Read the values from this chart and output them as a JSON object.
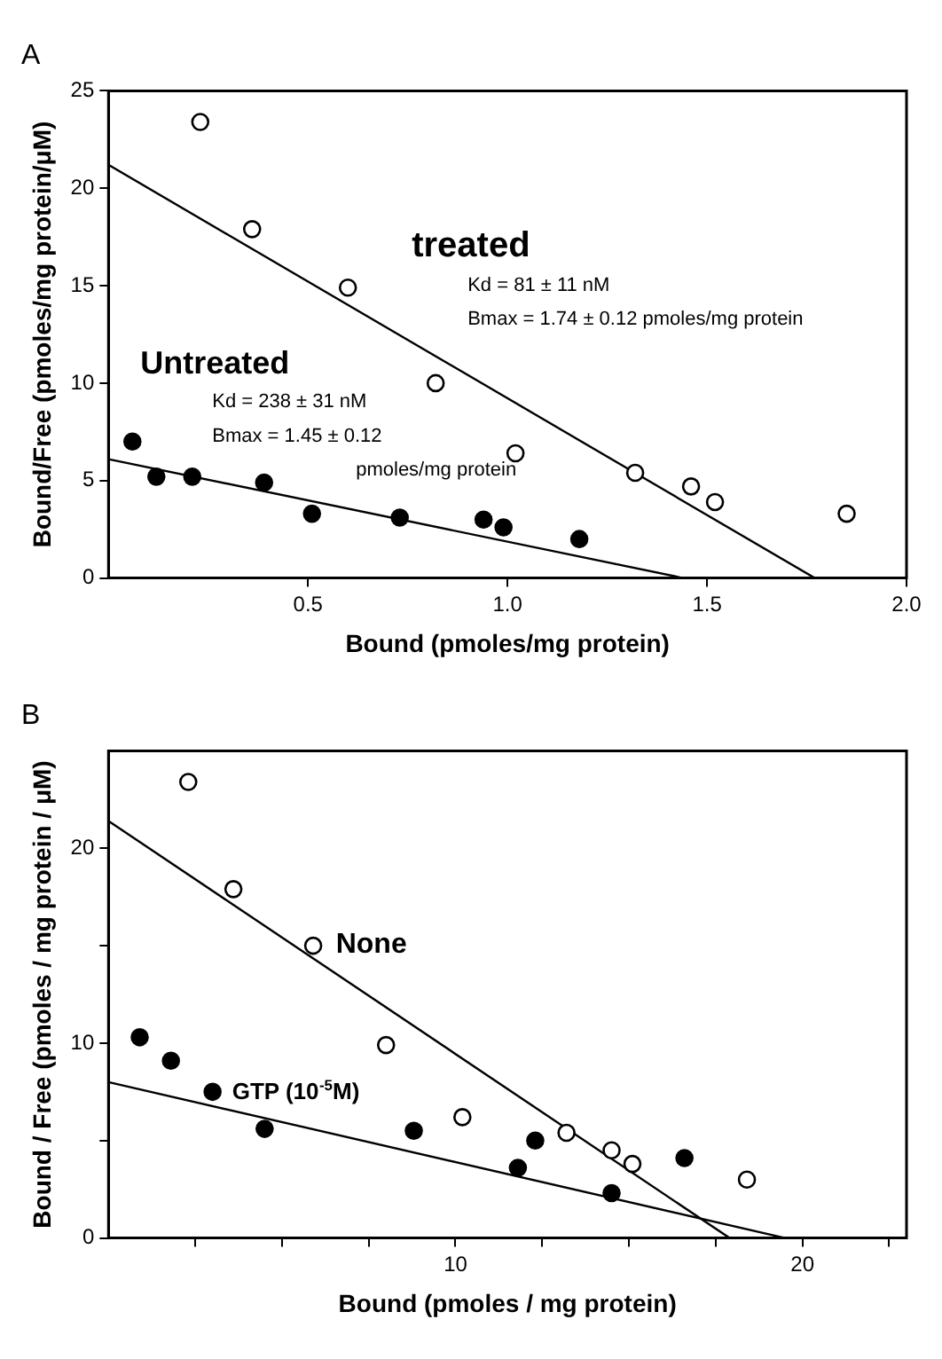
{
  "chart_data": [
    {
      "type": "scatter",
      "title": "A",
      "xlabel": "Bound (pmoles/mg protein)",
      "ylabel": "Bound/Free (pmoles/mg protein/μM)",
      "xlim": [
        0,
        2.0
      ],
      "ylim": [
        0,
        25
      ],
      "xticks": [
        {
          "value": 0.5,
          "label": "0.5"
        },
        {
          "value": 1.0,
          "label": "1.0"
        },
        {
          "value": 1.5,
          "label": "1.5"
        },
        {
          "value": 2.0,
          "label": "2.0"
        }
      ],
      "yticks": [
        0,
        5,
        10,
        15,
        20,
        25
      ],
      "grid": false,
      "legend": false,
      "marker": "circle",
      "annotations": [
        "treated",
        "Kd = 81 ± 11 nM",
        "Bmax = 1.74 ± 0.12 pmoles/mg protein",
        "Kd = 238 ± 31 nM",
        "Bmax = 1.45 ± 0.12",
        "pmoles/mg protein"
      ],
      "series": [
        {
          "type": "scatter",
          "color": "#000000",
          "x": [
            0.23,
            0.36,
            0.6,
            0.82,
            1.02,
            1.32,
            1.46,
            1.52,
            1.85
          ],
          "values": [
            23.4,
            17.9,
            14.9,
            10.0,
            6.4,
            5.4,
            4.7,
            3.9,
            3.3
          ]
        },
        {
          "type": "line",
          "color": "#000000",
          "marker": "none",
          "x": [
            0,
            1.77
          ],
          "values": [
            21.2,
            0
          ]
        },
        {
          "type": "scatter",
          "name": "Untreated",
          "color": "#000000",
          "x": [
            0.06,
            0.12,
            0.21,
            0.39,
            0.51,
            0.73,
            0.94,
            0.99,
            1.18
          ],
          "values": [
            7.0,
            5.2,
            5.2,
            4.9,
            3.3,
            3.1,
            3.0,
            2.6,
            2.0
          ]
        },
        {
          "type": "line",
          "color": "#000000",
          "marker": "none",
          "x": [
            0,
            1.44
          ],
          "values": [
            6.1,
            0
          ]
        }
      ]
    },
    {
      "type": "scatter",
      "title": "B",
      "xlabel": "Bound (pmoles / mg protein)",
      "ylabel": "Bound / Free (pmoles / mg protein / μM)",
      "xlim": [
        0,
        23
      ],
      "ylim": [
        0,
        25
      ],
      "xticks": [
        {
          "value": 2.5,
          "label": null
        },
        {
          "value": 5,
          "label": null
        },
        {
          "value": 7.5,
          "label": null
        },
        10,
        {
          "value": 12.5,
          "label": null
        },
        {
          "value": 15,
          "label": null
        },
        {
          "value": 17.5,
          "label": null
        },
        20,
        {
          "value": 22.5,
          "label": null
        }
      ],
      "yticks": [
        0,
        {
          "value": 5,
          "label": null
        },
        10,
        {
          "value": 15,
          "label": null
        },
        20
      ],
      "grid": false,
      "legend": false,
      "marker": "circle",
      "series": [
        {
          "type": "scatter",
          "name": "None",
          "color": "#000000",
          "x": [
            2.3,
            3.6,
            5.9,
            8.0,
            10.2,
            13.2,
            14.5,
            15.1,
            18.4
          ],
          "values": [
            23.4,
            17.9,
            15.0,
            9.9,
            6.2,
            5.4,
            4.5,
            3.8,
            3.0
          ]
        },
        {
          "type": "line",
          "color": "#000000",
          "marker": "none",
          "x": [
            0,
            17.9
          ],
          "values": [
            21.4,
            0
          ]
        },
        {
          "type": "scatter",
          "name": "GTP (10$^{-5}$M)",
          "color": "#000000",
          "x": [
            0.9,
            1.8,
            3.0,
            4.5,
            8.8,
            11.8,
            12.3,
            14.5,
            16.6
          ],
          "values": [
            10.3,
            9.1,
            7.5,
            5.6,
            5.5,
            3.6,
            5.0,
            2.3,
            4.1
          ]
        },
        {
          "type": "line",
          "color": "#000000",
          "marker": "none",
          "x": [
            0,
            19.5
          ],
          "values": [
            8.0,
            0
          ]
        }
      ]
    }
  ]
}
